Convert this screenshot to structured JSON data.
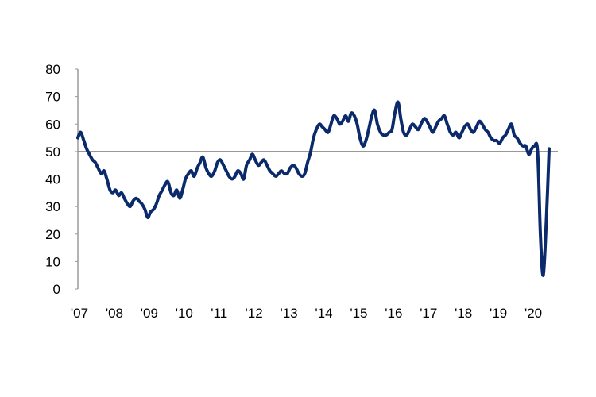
{
  "chart_data": {
    "type": "line",
    "title": "",
    "xlabel": "",
    "ylabel": "",
    "ylim": [
      0,
      80
    ],
    "xlim": [
      2007.0,
      2020.75
    ],
    "yticks": [
      0,
      10,
      20,
      30,
      40,
      50,
      60,
      70,
      80
    ],
    "xtick_labels": [
      "'07",
      "'08",
      "'09",
      "'10",
      "'11",
      "'12",
      "'13",
      "'14",
      "'15",
      "'16",
      "'17",
      "'18",
      "'19",
      "'20"
    ],
    "reference_line": 50,
    "grid": false,
    "legend": "none",
    "colors": {
      "line": "#0b2a6b",
      "axis": "#9a9a9a",
      "reference": "#8a8a8a"
    },
    "series": [
      {
        "x": [
          2007.0,
          2007.08,
          2007.17,
          2007.25,
          2007.33,
          2007.42,
          2007.5,
          2007.58,
          2007.67,
          2007.75,
          2007.83,
          2007.92,
          2008.0,
          2008.08,
          2008.17,
          2008.25,
          2008.33,
          2008.42,
          2008.5,
          2008.58,
          2008.67,
          2008.75,
          2008.83,
          2008.92,
          2009.0,
          2009.08,
          2009.17,
          2009.25,
          2009.33,
          2009.42,
          2009.5,
          2009.58,
          2009.67,
          2009.75,
          2009.83,
          2009.92,
          2010.0,
          2010.08,
          2010.17,
          2010.25,
          2010.33,
          2010.42,
          2010.5,
          2010.58,
          2010.67,
          2010.75,
          2010.83,
          2010.92,
          2011.0,
          2011.08,
          2011.17,
          2011.25,
          2011.33,
          2011.42,
          2011.5,
          2011.58,
          2011.67,
          2011.75,
          2011.83,
          2011.92,
          2012.0,
          2012.08,
          2012.17,
          2012.25,
          2012.33,
          2012.42,
          2012.5,
          2012.58,
          2012.67,
          2012.75,
          2012.83,
          2012.92,
          2013.0,
          2013.08,
          2013.17,
          2013.25,
          2013.33,
          2013.42,
          2013.5,
          2013.58,
          2013.67,
          2013.75,
          2013.83,
          2013.92,
          2014.0,
          2014.08,
          2014.17,
          2014.25,
          2014.33,
          2014.42,
          2014.5,
          2014.58,
          2014.67,
          2014.75,
          2014.83,
          2014.92,
          2015.0,
          2015.08,
          2015.17,
          2015.25,
          2015.33,
          2015.42,
          2015.5,
          2015.58,
          2015.67,
          2015.75,
          2015.83,
          2015.92,
          2016.0,
          2016.08,
          2016.17,
          2016.25,
          2016.33,
          2016.42,
          2016.5,
          2016.58,
          2016.67,
          2016.75,
          2016.83,
          2016.92,
          2017.0,
          2017.08,
          2017.17,
          2017.25,
          2017.33,
          2017.42,
          2017.5,
          2017.58,
          2017.67,
          2017.75,
          2017.83,
          2017.92,
          2018.0,
          2018.08,
          2018.17,
          2018.25,
          2018.33,
          2018.42,
          2018.5,
          2018.58,
          2018.67,
          2018.75,
          2018.83,
          2018.92,
          2019.0,
          2019.08,
          2019.17,
          2019.25,
          2019.33,
          2019.42,
          2019.5,
          2019.58,
          2019.67,
          2019.75,
          2019.83,
          2019.92,
          2020.0,
          2020.08,
          2020.17,
          2020.25,
          2020.33,
          2020.42,
          2020.5
        ],
        "y": [
          55,
          57,
          54,
          51,
          49,
          47,
          46,
          44,
          42,
          43,
          40,
          36,
          35,
          36,
          34,
          35,
          33,
          31,
          30,
          32,
          33,
          32,
          31,
          29,
          26,
          28,
          29,
          31,
          34,
          36,
          38,
          39,
          35,
          34,
          36,
          33,
          36,
          40,
          42,
          43,
          41,
          44,
          46,
          48,
          44,
          42,
          41,
          43,
          46,
          47,
          45,
          43,
          41,
          40,
          41,
          43,
          42,
          40,
          45,
          47,
          49,
          47,
          45,
          46,
          47,
          45,
          43,
          42,
          41,
          42,
          43,
          42,
          42,
          44,
          45,
          44,
          42,
          41,
          42,
          46,
          50,
          55,
          58,
          60,
          59,
          58,
          57,
          60,
          63,
          62,
          60,
          61,
          63,
          61,
          64,
          63,
          60,
          55,
          52,
          54,
          58,
          63,
          65,
          60,
          57,
          56,
          56,
          57,
          58,
          64,
          68,
          62,
          57,
          56,
          58,
          60,
          59,
          58,
          60,
          62,
          61,
          59,
          57,
          59,
          61,
          62,
          63,
          60,
          57,
          56,
          57,
          55,
          57,
          59,
          60,
          58,
          57,
          59,
          61,
          60,
          58,
          57,
          55,
          54,
          54,
          53,
          55,
          56,
          58,
          60,
          56,
          55,
          53,
          52,
          52,
          49,
          51,
          52,
          50,
          20,
          5,
          25,
          51
        ]
      }
    ]
  }
}
